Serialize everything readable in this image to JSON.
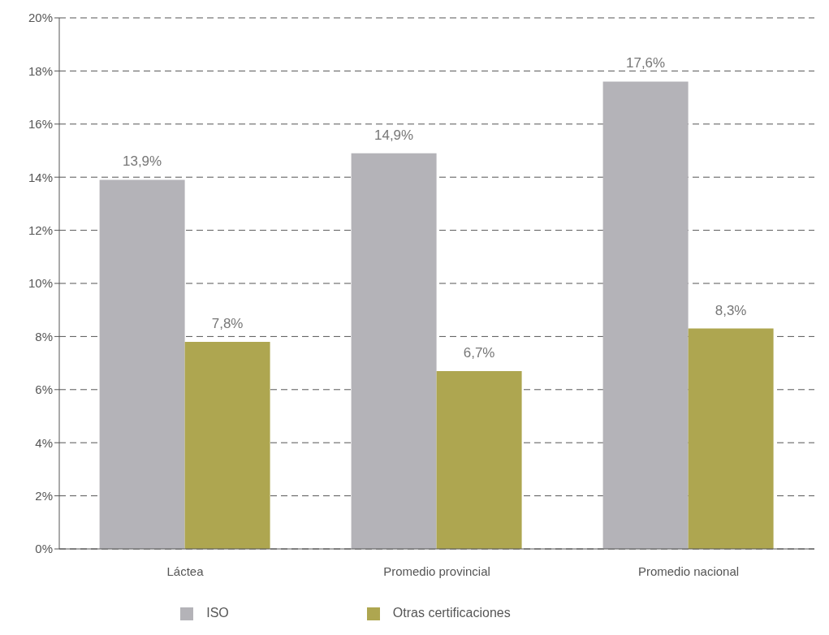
{
  "chart_data": {
    "type": "bar",
    "categories": [
      "Láctea",
      "Promedio provincial",
      "Promedio nacional"
    ],
    "series": [
      {
        "name": "ISO",
        "color": "#b4b3b8",
        "values": [
          13.9,
          14.9,
          17.6
        ],
        "value_labels": [
          "13,9%",
          "14,9%",
          "17,6%"
        ]
      },
      {
        "name": "Otras certificaciones",
        "color": "#aea650",
        "values": [
          7.8,
          6.7,
          8.3
        ],
        "value_labels": [
          "7,8%",
          "6,7%",
          "8,3%"
        ]
      }
    ],
    "ylim": [
      0,
      20
    ],
    "yticks": [
      {
        "value": 0,
        "label": "0%"
      },
      {
        "value": 2,
        "label": "2%"
      },
      {
        "value": 4,
        "label": "4%"
      },
      {
        "value": 6,
        "label": "6%"
      },
      {
        "value": 8,
        "label": "8%"
      },
      {
        "value": 10,
        "label": "10%"
      },
      {
        "value": 12,
        "label": "12%"
      },
      {
        "value": 14,
        "label": "14%"
      },
      {
        "value": 16,
        "label": "16%"
      },
      {
        "value": 18,
        "label": "18%"
      },
      {
        "value": 20,
        "label": "20%"
      }
    ],
    "grid": "y",
    "legend": "bottom"
  }
}
